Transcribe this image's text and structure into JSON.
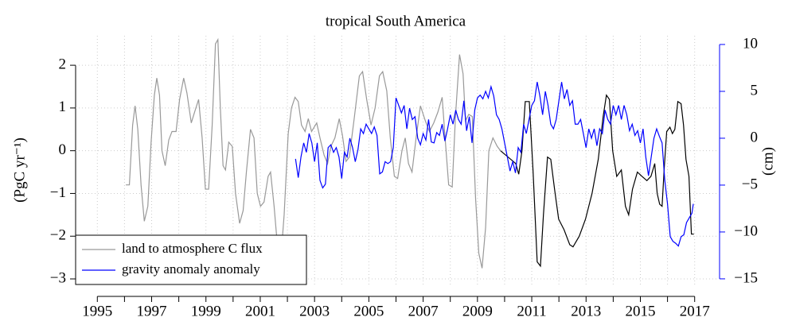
{
  "chart_data": {
    "type": "line",
    "title": "tropical South America",
    "y_label": "(PgC yr⁻¹)",
    "y2_label": "(cm)",
    "xlim": [
      1994.2,
      2017.8
    ],
    "ylim": [
      -3.13,
      2.69
    ],
    "y2lim": [
      -15.6,
      10.93
    ],
    "xticks": [
      1995,
      {
        "value": 1996,
        "label": null
      },
      1997,
      {
        "value": 1998,
        "label": null
      },
      1999,
      {
        "value": 2000,
        "label": null
      },
      2001,
      {
        "value": 2002,
        "label": null
      },
      2003,
      {
        "value": 2004,
        "label": null
      },
      2005,
      {
        "value": 2006,
        "label": null
      },
      2007,
      {
        "value": 2008,
        "label": null
      },
      2009,
      {
        "value": 2010,
        "label": null
      },
      2011,
      {
        "value": 2012,
        "label": null
      },
      2013,
      {
        "value": 2014,
        "label": null
      },
      2015,
      {
        "value": 2016,
        "label": null
      },
      2017
    ],
    "yticks": [
      {
        "value": -3,
        "label": "−3"
      },
      {
        "value": -2,
        "label": "−2"
      },
      {
        "value": -1,
        "label": "−1"
      },
      0,
      1,
      2
    ],
    "y2ticks": [
      {
        "value": -15,
        "label": "−15"
      },
      {
        "value": -10,
        "label": "−10"
      },
      {
        "value": -5,
        "label": "−5"
      },
      0,
      5,
      10
    ],
    "y2_color": "#0000ff",
    "grid": true,
    "legend": "bottom-left",
    "series": [
      {
        "name": "land to atmosphere C flux",
        "color": "#999999",
        "x": [
          1996.05,
          1996.18,
          1996.3,
          1996.39,
          1996.49,
          1996.61,
          1996.73,
          1996.86,
          1996.98,
          1997.1,
          1997.19,
          1997.29,
          1997.38,
          1997.5,
          1997.63,
          1997.75,
          1997.9,
          1998.03,
          1998.18,
          1998.3,
          1998.46,
          1998.58,
          1998.73,
          1998.86,
          1998.98,
          1999.1,
          1999.23,
          1999.35,
          1999.44,
          1999.53,
          1999.63,
          1999.72,
          1999.84,
          1999.97,
          2000.09,
          2000.24,
          2000.37,
          2000.49,
          2000.64,
          2000.77,
          2000.89,
          2001.01,
          2001.14,
          2001.29,
          2001.38,
          2001.51,
          2001.63,
          2001.75,
          2001.88,
          2002.03,
          2002.15,
          2002.28,
          2002.4,
          2002.52,
          2002.65,
          2002.77,
          2002.89,
          2003.08,
          2003.2,
          2003.35,
          2003.48,
          2003.6,
          2003.75,
          2003.91,
          2004.03,
          2004.16,
          2004.28,
          2004.46,
          2004.65,
          2004.77,
          2004.92,
          2005.08,
          2005.23,
          2005.39,
          2005.51,
          2005.66,
          2005.79,
          2005.94,
          2006.06,
          2006.22,
          2006.34,
          2006.46,
          2006.59,
          2006.74,
          2006.9,
          2007.08,
          2007.23,
          2007.39,
          2007.54,
          2007.7,
          2007.82,
          2007.94,
          2008.07,
          2008.19,
          2008.34,
          2008.47,
          2008.56,
          2008.68,
          2008.81,
          2008.93,
          2009.05,
          2009.17,
          2009.3,
          2009.42,
          2009.57,
          2009.73,
          2009.85
        ],
        "values": [
          -0.8,
          -0.8,
          0.6,
          1.05,
          0.5,
          -0.8,
          -1.65,
          -1.3,
          0.2,
          1.3,
          1.7,
          1.3,
          0.0,
          -0.35,
          0.25,
          0.45,
          0.45,
          1.2,
          1.7,
          1.35,
          0.65,
          0.9,
          1.2,
          0.3,
          -0.9,
          -0.9,
          0.6,
          2.5,
          2.6,
          1.0,
          -0.35,
          -0.45,
          0.2,
          0.1,
          -1.0,
          -1.7,
          -1.4,
          -0.5,
          0.5,
          0.3,
          -1.0,
          -1.3,
          -1.2,
          -0.6,
          -0.5,
          -1.3,
          -2.2,
          -2.6,
          -1.5,
          0.4,
          1.0,
          1.25,
          1.15,
          0.6,
          0.45,
          0.75,
          0.45,
          0.65,
          0.3,
          -0.1,
          -0.3,
          0.1,
          0.3,
          0.75,
          0.35,
          -0.25,
          -0.15,
          0.75,
          1.75,
          1.85,
          1.2,
          0.6,
          1.0,
          1.75,
          1.85,
          1.4,
          0.3,
          -0.6,
          -0.65,
          0.0,
          0.3,
          -0.3,
          -0.5,
          0.3,
          1.05,
          0.7,
          0.45,
          0.65,
          0.9,
          1.25,
          0.2,
          -0.8,
          -0.85,
          0.8,
          2.25,
          1.8,
          0.7,
          0.85,
          0.8,
          -1.1,
          -2.4,
          -2.75,
          -1.8,
          0.0,
          0.3,
          0.1,
          0.0
        ]
      },
      {
        "color": "#000000",
        "x": [
          2009.85,
          2010.41,
          2010.52,
          2010.64,
          2010.76,
          2010.91,
          2011.05,
          2011.2,
          2011.32,
          2011.43,
          2011.58,
          2011.7,
          2011.84,
          2011.99,
          2012.19,
          2012.4,
          2012.52,
          2012.75,
          2012.98,
          2013.22,
          2013.45,
          2013.63,
          2013.75,
          2013.86,
          2013.98,
          2014.13,
          2014.3,
          2014.45,
          2014.57,
          2014.71,
          2014.89,
          2015.06,
          2015.24,
          2015.39,
          2015.53,
          2015.62,
          2015.71,
          2015.8,
          2015.88,
          2015.97,
          2016.09,
          2016.18,
          2016.27,
          2016.38,
          2016.5,
          2016.59,
          2016.68,
          2016.79,
          2016.88,
          2016.97
        ],
        "values": [
          0.0,
          -0.3,
          -0.55,
          0.0,
          1.15,
          1.15,
          -0.5,
          -2.6,
          -2.7,
          -1.5,
          -0.15,
          -0.2,
          -0.9,
          -1.6,
          -1.85,
          -2.2,
          -2.25,
          -2.0,
          -1.6,
          -1.0,
          -0.2,
          0.8,
          1.3,
          1.2,
          0.0,
          -0.6,
          -0.45,
          -1.3,
          -1.5,
          -0.9,
          -0.5,
          -0.6,
          -0.7,
          -0.6,
          -0.3,
          -1.0,
          -1.25,
          -1.3,
          -0.4,
          0.45,
          0.55,
          0.4,
          0.5,
          1.15,
          1.1,
          0.6,
          -0.2,
          -0.6,
          -1.95,
          -1.95
        ]
      },
      {
        "name": "gravity anomaly anomaly",
        "color": "#0000ff",
        "axis": "y2",
        "x": [
          2002.3,
          2002.4,
          2002.5,
          2002.6,
          2002.7,
          2002.8,
          2002.9,
          2003.0,
          2003.1,
          2003.2,
          2003.3,
          2003.4,
          2003.5,
          2003.6,
          2003.7,
          2003.8,
          2003.9,
          2004.0,
          2004.1,
          2004.2,
          2004.3,
          2004.4,
          2004.5,
          2004.6,
          2004.7,
          2004.8,
          2004.9,
          2005.0,
          2005.1,
          2005.2,
          2005.3,
          2005.4,
          2005.5,
          2005.6,
          2005.7,
          2005.8,
          2005.9,
          2006.0,
          2006.1,
          2006.2,
          2006.3,
          2006.4,
          2006.5,
          2006.6,
          2006.7,
          2006.8,
          2006.9,
          2007.0,
          2007.1,
          2007.2,
          2007.3,
          2007.4,
          2007.5,
          2007.6,
          2007.7,
          2007.8,
          2007.9,
          2008.0,
          2008.1,
          2008.2,
          2008.3,
          2008.4,
          2008.5,
          2008.6,
          2008.7,
          2008.8,
          2008.9,
          2009.0,
          2009.1,
          2009.2,
          2009.3,
          2009.4,
          2009.5,
          2009.6,
          2009.7,
          2009.8,
          2009.9,
          2010.0,
          2010.1,
          2010.2,
          2010.3,
          2010.4,
          2010.5,
          2010.6,
          2010.7,
          2010.8,
          2010.9,
          2011.0,
          2011.1,
          2011.2,
          2011.3,
          2011.4,
          2011.5,
          2011.6,
          2011.7,
          2011.8,
          2011.9,
          2012.0,
          2012.1,
          2012.2,
          2012.3,
          2012.4,
          2012.5,
          2012.6,
          2012.7,
          2012.8,
          2012.9,
          2013.0,
          2013.1,
          2013.2,
          2013.3,
          2013.4,
          2013.5,
          2013.6,
          2013.7,
          2013.8,
          2013.9,
          2014.0,
          2014.1,
          2014.2,
          2014.3,
          2014.4,
          2014.5,
          2014.6,
          2014.7,
          2014.8,
          2014.9,
          2015.0,
          2015.1,
          2015.2,
          2015.3,
          2015.4,
          2015.5,
          2015.6,
          2015.7,
          2015.8,
          2015.9,
          2016.0,
          2016.1,
          2016.2,
          2016.3,
          2016.4,
          2016.5,
          2016.6,
          2016.7,
          2016.8,
          2016.9,
          2016.95
        ],
        "values": [
          -2.2,
          -4.2,
          -2.0,
          -0.5,
          -1.5,
          0.5,
          -0.5,
          -2.5,
          -0.5,
          -4.5,
          -5.3,
          -4.9,
          -1.0,
          -0.7,
          -1.5,
          -1.0,
          -2.0,
          -4.3,
          -1.5,
          -2.0,
          0.0,
          -1.0,
          -2.5,
          -1.2,
          1.0,
          0.5,
          1.5,
          1.0,
          0.5,
          1.2,
          0.3,
          -3.8,
          -3.6,
          -2.5,
          -2.7,
          -2.5,
          -1.0,
          4.3,
          3.5,
          2.7,
          3.5,
          1.0,
          3.2,
          2.0,
          2.3,
          0.0,
          -0.7,
          0.5,
          -0.2,
          2.0,
          -0.4,
          -0.5,
          0.6,
          0.3,
          1.5,
          -0.3,
          1.0,
          2.5,
          1.5,
          3.0,
          2.0,
          1.5,
          4.0,
          0.8,
          2.3,
          -0.5,
          3.0,
          4.3,
          4.6,
          4.2,
          5.0,
          4.3,
          5.5,
          4.5,
          2.5,
          2.0,
          1.0,
          -0.5,
          -2.0,
          -3.5,
          -2.5,
          -3.7,
          -1.0,
          -1.5,
          1.5,
          0.5,
          2.0,
          3.5,
          4.0,
          6.0,
          4.5,
          2.5,
          5.0,
          3.5,
          1.5,
          1.0,
          2.0,
          4.0,
          6.0,
          4.2,
          5.2,
          3.5,
          4.0,
          1.5,
          1.5,
          2.0,
          0.5,
          -1.0,
          1.0,
          0.0,
          1.0,
          -0.8,
          1.0,
          0.5,
          3.0,
          2.0,
          1.5,
          3.5,
          2.5,
          3.5,
          2.0,
          3.5,
          2.5,
          0.8,
          1.5,
          0.3,
          0.8,
          -0.5,
          1.0,
          -2.0,
          -4.0,
          -2.0,
          0.0,
          1.0,
          0.2,
          -0.5,
          -4.5,
          -7.0,
          -10.5,
          -11.0,
          -11.2,
          -11.5,
          -10.5,
          -10.3,
          -9.0,
          -8.5,
          -8.0,
          -7.0
        ]
      }
    ]
  }
}
